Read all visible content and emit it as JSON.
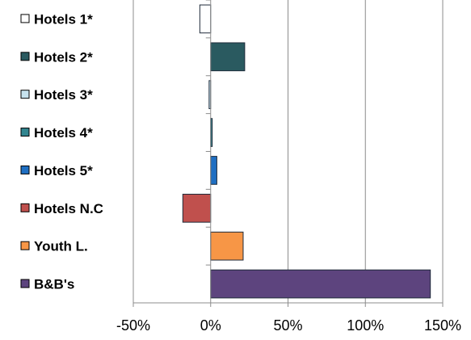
{
  "chart_data": {
    "type": "bar",
    "orientation": "horizontal",
    "categories": [
      "Hotels 1*",
      "Hotels 2*",
      "Hotels 3*",
      "Hotels 4*",
      "Hotels 5*",
      "Hotels N.C",
      "Youth L.",
      "B&B's"
    ],
    "values": [
      -7,
      22,
      -1,
      1,
      4,
      -18,
      21,
      142
    ],
    "colors": [
      "#ffffff",
      "#2a5a60",
      "#c6e2ee",
      "#31858f",
      "#1f6fc2",
      "#c0504d",
      "#f79646",
      "#5d447e"
    ],
    "xlim": [
      -50,
      150
    ],
    "xticks": [
      "-50%",
      "0%",
      "50%",
      "100%",
      "150%"
    ],
    "xtick_values": [
      -50,
      0,
      50,
      100,
      150
    ],
    "grid": true,
    "xlabel": "",
    "ylabel": "",
    "title": ""
  }
}
